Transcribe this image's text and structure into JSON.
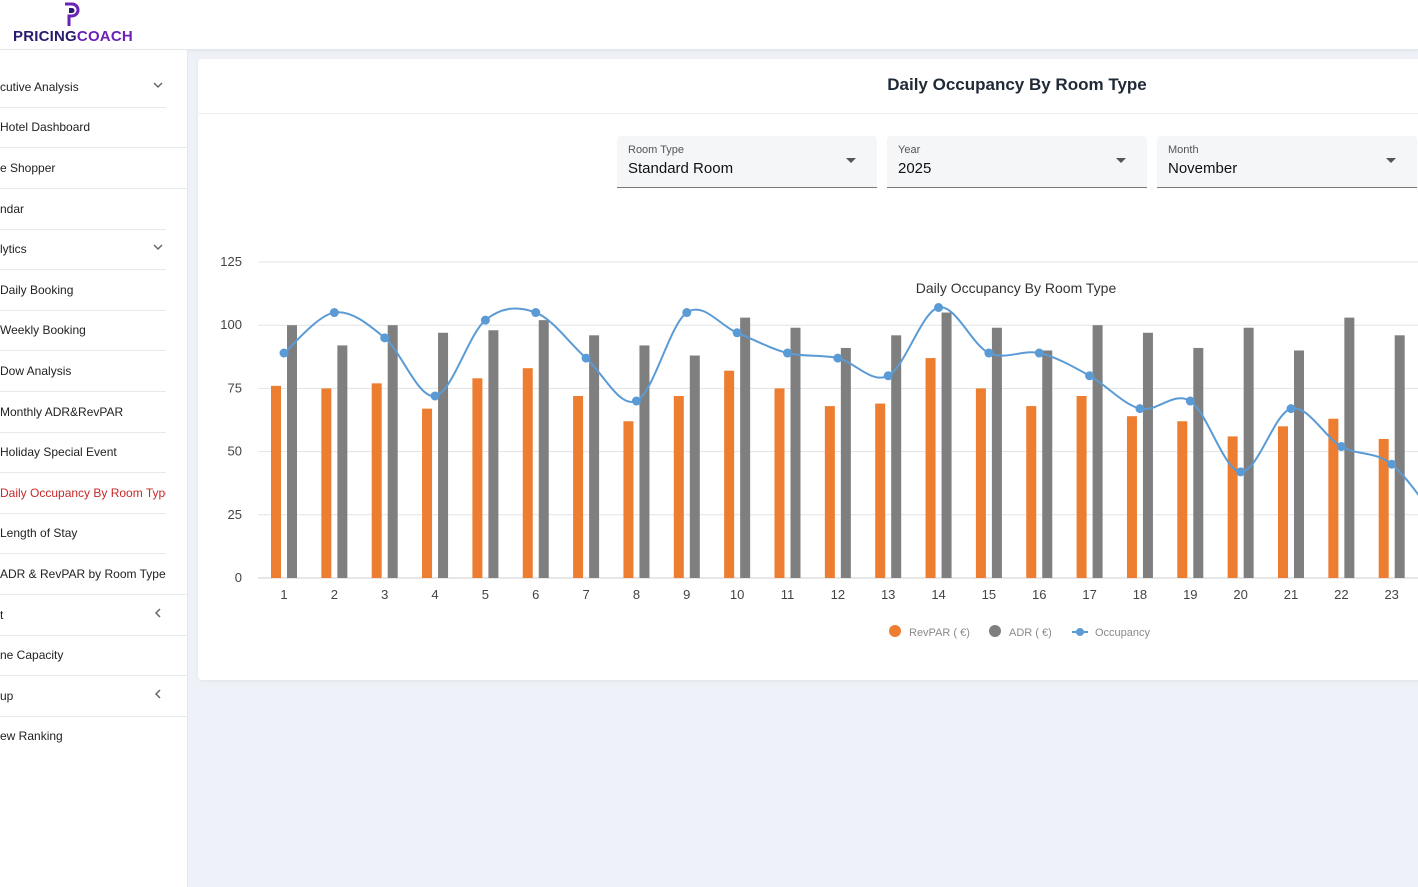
{
  "brand": {
    "logo_part1": "PRICING",
    "logo_part2": "COACH"
  },
  "sidebar": {
    "items": [
      {
        "label": "cutive Analysis",
        "icon": "chevron-down-icon"
      },
      {
        "label": "Hotel Dashboard"
      },
      {
        "label": "e Shopper"
      },
      {
        "label": "ndar"
      },
      {
        "label": "lytics",
        "icon": "chevron-down-icon"
      },
      {
        "label": "Daily Booking"
      },
      {
        "label": "Weekly Booking"
      },
      {
        "label": "Dow Analysis"
      },
      {
        "label": "Monthly ADR&RevPAR"
      },
      {
        "label": "Holiday Special Event"
      },
      {
        "label": "Daily Occupancy By Room Type",
        "active": true
      },
      {
        "label": "Length of Stay"
      },
      {
        "label": "ADR & RevPAR by Room Type"
      },
      {
        "label": "t",
        "icon": "chevron-left-icon"
      },
      {
        "label": "ne Capacity"
      },
      {
        "label": "up",
        "icon": "chevron-left-icon"
      },
      {
        "label": "ew Ranking"
      }
    ]
  },
  "card": {
    "title": "Daily Occupancy By Room Type"
  },
  "filters": {
    "room_type": {
      "label": "Room Type",
      "value": "Standard Room"
    },
    "year": {
      "label": "Year",
      "value": "2025"
    },
    "month": {
      "label": "Month",
      "value": "November"
    }
  },
  "colors": {
    "revpar": "#ed7d31",
    "adr": "#7f7f7f",
    "occupancy": "#5b9bd5",
    "active_nav": "#c62828"
  },
  "chart_data": {
    "type": "bar",
    "title": "Daily Occupancy By Room Type",
    "categories": [
      "1",
      "2",
      "3",
      "4",
      "5",
      "6",
      "7",
      "8",
      "9",
      "10",
      "11",
      "12",
      "13",
      "14",
      "15",
      "16",
      "17",
      "18",
      "19",
      "20",
      "21",
      "22",
      "23"
    ],
    "ylim": [
      0,
      125
    ],
    "yticks": [
      0,
      25,
      50,
      75,
      100,
      125
    ],
    "grid": true,
    "legend_position": "bottom",
    "series": [
      {
        "name": "RevPAR ( €)",
        "kind": "bar",
        "values": [
          76,
          75,
          77,
          67,
          79,
          83,
          72,
          62,
          72,
          82,
          75,
          68,
          69,
          87,
          75,
          68,
          72,
          64,
          62,
          56,
          60,
          63,
          55
        ]
      },
      {
        "name": "ADR ( €)",
        "kind": "bar",
        "values": [
          100,
          92,
          100,
          97,
          98,
          102,
          96,
          92,
          88,
          103,
          99,
          91,
          96,
          105,
          99,
          90,
          100,
          97,
          91,
          99,
          90,
          103,
          96
        ]
      },
      {
        "name": "Occupancy",
        "kind": "line",
        "values": [
          89,
          105,
          95,
          72,
          102,
          105,
          87,
          70,
          105,
          97,
          89,
          87,
          80,
          107,
          89,
          89,
          80,
          67,
          70,
          42,
          67,
          52,
          45
        ]
      }
    ]
  }
}
